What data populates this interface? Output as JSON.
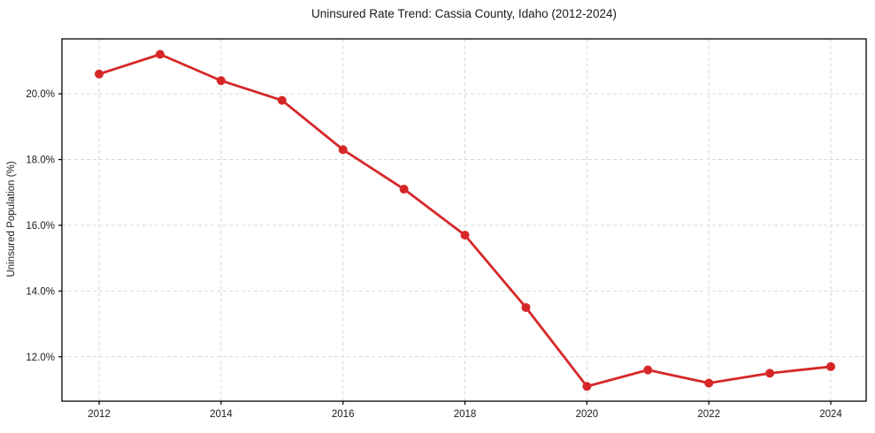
{
  "chart_data": {
    "type": "line",
    "title": "Uninsured Rate Trend: Cassia County, Idaho (2012-2024)",
    "xlabel": "",
    "ylabel": "Uninsured Population (%)",
    "x": [
      2012,
      2013,
      2014,
      2015,
      2016,
      2017,
      2018,
      2019,
      2020,
      2021,
      2022,
      2023,
      2024
    ],
    "values": [
      20.6,
      21.2,
      20.4,
      19.8,
      18.3,
      17.1,
      15.7,
      13.5,
      11.1,
      11.6,
      11.2,
      11.5,
      11.7
    ],
    "x_ticks": [
      {
        "value": 2012,
        "label": "2012"
      },
      {
        "value": 2014,
        "label": "2014"
      },
      {
        "value": 2016,
        "label": "2016"
      },
      {
        "value": 2018,
        "label": "2018"
      },
      {
        "value": 2020,
        "label": "2020"
      },
      {
        "value": 2022,
        "label": "2022"
      },
      {
        "value": 2024,
        "label": "2024"
      }
    ],
    "y_ticks": [
      {
        "value": 12,
        "label": "12.0%"
      },
      {
        "value": 14,
        "label": "14.0%"
      },
      {
        "value": 16,
        "label": "16.0%"
      },
      {
        "value": 18,
        "label": "18.0%"
      },
      {
        "value": 20,
        "label": "20.0%"
      }
    ],
    "xlim": [
      2011.39,
      2024.58
    ],
    "ylim": [
      10.65,
      21.67
    ],
    "grid": true,
    "legend": "none",
    "line_color": "#d62728",
    "marker": "circle",
    "marker_size": 5,
    "line_width": 2.8,
    "grid_color": "#d9d9d9",
    "axis_color": "#000000",
    "background": "#ffffff"
  }
}
